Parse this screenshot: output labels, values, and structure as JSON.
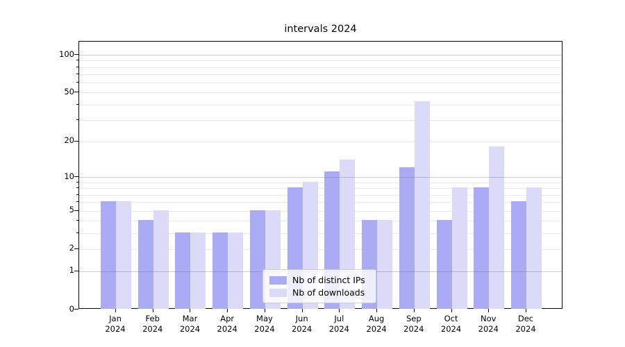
{
  "chart_data": {
    "type": "bar",
    "title": "intervals 2024",
    "categories": [
      "Jan",
      "Feb",
      "Mar",
      "Apr",
      "May",
      "Jun",
      "Jul",
      "Aug",
      "Sep",
      "Oct",
      "Nov",
      "Dec"
    ],
    "x_year_label": "2024",
    "series": [
      {
        "name": "Nb of distinct IPs",
        "color": "#aaaaf5",
        "values": [
          6,
          4,
          3,
          3,
          5,
          8,
          11,
          4,
          12,
          4,
          8,
          6
        ]
      },
      {
        "name": "Nb of downloads",
        "color": "#dbdbf9",
        "values": [
          6,
          5,
          3,
          3,
          5,
          9,
          14,
          4,
          42,
          8,
          18,
          8
        ]
      }
    ],
    "yscale": "log1p",
    "ylim": [
      0,
      128
    ],
    "y_tick_labels": [
      0,
      1,
      2,
      5,
      10,
      20,
      50,
      100
    ],
    "y_major_grid": [
      1,
      10,
      100
    ],
    "y_minor_grid": [
      2,
      3,
      4,
      5,
      6,
      7,
      8,
      9,
      20,
      30,
      40,
      50,
      60,
      70,
      80,
      90
    ],
    "y_minor_tick_marks": [
      3,
      4,
      6,
      7,
      8,
      9,
      30,
      40,
      60,
      70,
      80,
      90
    ],
    "grid": true,
    "legend_position": "lower center",
    "xlabel": "",
    "ylabel": ""
  }
}
